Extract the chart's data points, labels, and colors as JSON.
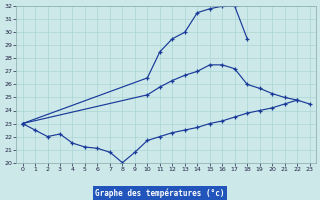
{
  "background_color": "#cce8e8",
  "grid_color": "#aad4d4",
  "line_color": "#1a3a9a",
  "xlabel": "Graphe des températures (°c)",
  "xlim": [
    -0.5,
    23.5
  ],
  "ylim": [
    20,
    32
  ],
  "xticks": [
    0,
    1,
    2,
    3,
    4,
    5,
    6,
    7,
    8,
    9,
    10,
    11,
    12,
    13,
    14,
    15,
    16,
    17,
    18,
    19,
    20,
    21,
    22,
    23
  ],
  "yticks": [
    20,
    21,
    22,
    23,
    24,
    25,
    26,
    27,
    28,
    29,
    30,
    31,
    32
  ],
  "xlabel_bg": "#2255bb",
  "curve1": {
    "x": [
      0,
      10,
      11,
      12,
      13,
      14,
      15,
      16,
      17,
      18
    ],
    "y": [
      23.0,
      26.5,
      28.5,
      29.5,
      30.0,
      31.5,
      31.8,
      32.0,
      32.0,
      29.5
    ]
  },
  "curve2": {
    "x": [
      0,
      10,
      11,
      12,
      13,
      14,
      15,
      16,
      17,
      18,
      19,
      20,
      21,
      22
    ],
    "y": [
      23.0,
      25.2,
      25.8,
      26.3,
      26.7,
      27.0,
      27.5,
      27.5,
      27.2,
      26.0,
      25.7,
      25.3,
      25.0,
      24.8
    ]
  },
  "curve3": {
    "x": [
      0,
      1,
      2,
      3,
      4,
      5,
      6,
      7,
      8,
      9,
      10,
      11,
      12,
      13,
      14,
      15,
      16,
      17,
      18,
      19,
      20,
      21,
      22,
      23
    ],
    "y": [
      23.0,
      22.5,
      22.0,
      22.2,
      21.5,
      21.2,
      21.1,
      20.8,
      20.0,
      20.8,
      21.7,
      22.0,
      22.3,
      22.5,
      22.7,
      23.0,
      23.2,
      23.5,
      23.8,
      24.0,
      24.2,
      24.5,
      24.8,
      24.5
    ]
  }
}
